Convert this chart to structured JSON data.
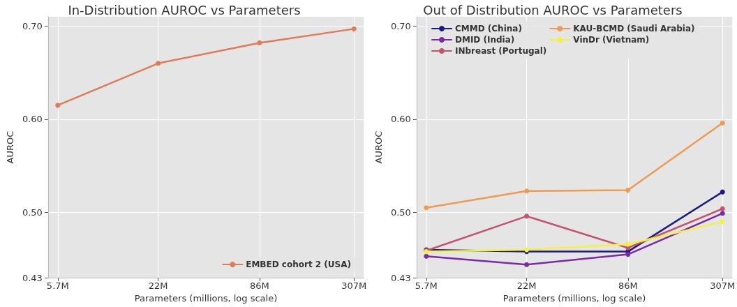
{
  "chart_data": [
    {
      "type": "line",
      "title": "In-Distribution AUROC vs Parameters",
      "xlabel": "Parameters (millions, log scale)",
      "ylabel": "AUROC",
      "x": [
        5.7,
        22,
        86,
        307
      ],
      "series": [
        {
          "name": "EMBED cohort 2 (USA)",
          "color": "#e07b5a",
          "values": [
            0.615,
            0.66,
            0.682,
            0.697
          ]
        }
      ],
      "xlim": [
        5,
        350
      ],
      "xticks": [
        {
          "value": 5.7,
          "label": "5.7M"
        },
        {
          "value": 22,
          "label": "22M"
        },
        {
          "value": 86,
          "label": "86M"
        },
        {
          "value": 307,
          "label": "307M"
        }
      ],
      "ylim": [
        0.43,
        0.71
      ],
      "yticks": [
        0.43,
        {
          "value": 0.5,
          "label": "0.50"
        },
        {
          "value": 0.6,
          "label": "0.60"
        },
        {
          "value": 0.7,
          "label": "0.70"
        }
      ],
      "log": "x",
      "grid": true,
      "legend": "bottom right",
      "marker": "circle",
      "line_style": "solid"
    },
    {
      "type": "line",
      "title": "Out of Distribution AUROC vs Parameters",
      "xlabel": "Parameters (millions, log scale)",
      "ylabel": "AUROC",
      "x": [
        5.7,
        22,
        86,
        307
      ],
      "series": [
        {
          "name": "CMMD (China)",
          "color": "#1b1b80",
          "values": [
            0.46,
            0.458,
            0.458,
            0.522
          ]
        },
        {
          "name": "DMID (India)",
          "color": "#7a2aa8",
          "values": [
            0.453,
            0.444,
            0.455,
            0.499
          ]
        },
        {
          "name": "INbreast (Portugal)",
          "color": "#c4536f",
          "values": [
            0.459,
            0.496,
            0.462,
            0.504
          ]
        },
        {
          "name": "KAU-BCMD (Saudi Arabia)",
          "color": "#ee9a50",
          "values": [
            0.505,
            0.523,
            0.524,
            0.596
          ]
        },
        {
          "name": "VinDr (Vietnam)",
          "color": "#f2f23f",
          "values": [
            0.458,
            0.46,
            0.466,
            0.49
          ]
        }
      ],
      "xlim": [
        5,
        350
      ],
      "xticks": [
        {
          "value": 5.7,
          "label": "5.7M"
        },
        {
          "value": 22,
          "label": "22M"
        },
        {
          "value": 86,
          "label": "86M"
        },
        {
          "value": 307,
          "label": "307M"
        }
      ],
      "ylim": [
        0.43,
        0.71
      ],
      "yticks": [
        0.43,
        {
          "value": 0.5,
          "label": "0.50"
        },
        {
          "value": 0.6,
          "label": "0.60"
        },
        {
          "value": 0.7,
          "label": "0.70"
        }
      ],
      "log": "x",
      "grid": true,
      "legend": "top",
      "marker": "circle",
      "line_style": "solid"
    }
  ]
}
